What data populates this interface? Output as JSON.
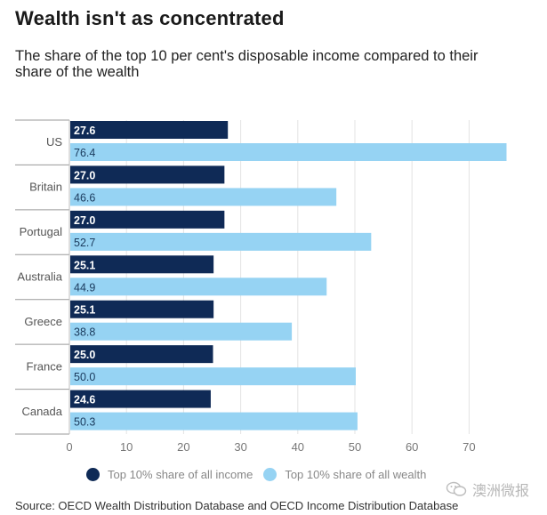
{
  "header": {
    "title": "Wealth isn't as concentrated",
    "subtitle": "The share of the top 10 per cent's disposable income compared to their share of the wealth"
  },
  "chart_data": {
    "type": "bar",
    "orientation": "horizontal",
    "categories": [
      "US",
      "Britain",
      "Portugal",
      "Australia",
      "Greece",
      "France",
      "Canada"
    ],
    "series": [
      {
        "name": "Top 10% share of all income",
        "color": "#0f2a56",
        "label_color": "#ffffff",
        "values": [
          27.6,
          27.0,
          27.0,
          25.1,
          25.1,
          25.0,
          24.6
        ],
        "labels": [
          "27.6",
          "27.0",
          "27.0",
          "25.1",
          "25.1",
          "25.0",
          "24.6"
        ]
      },
      {
        "name": "Top 10% share of all wealth",
        "color": "#96d3f3",
        "label_color": "#1a3a5c",
        "values": [
          76.4,
          46.6,
          52.7,
          44.9,
          38.8,
          50.0,
          50.3
        ],
        "labels": [
          "76.4",
          "46.6",
          "52.7",
          "44.9",
          "38.8",
          "50.0",
          "50.3"
        ]
      }
    ],
    "xlim": [
      0,
      78
    ],
    "xticks": [
      0,
      10,
      20,
      30,
      40,
      50,
      60,
      70
    ],
    "grid": true,
    "legend_position": "bottom"
  },
  "legend": {
    "income_label": "Top 10% share of all income",
    "wealth_label": "Top 10% share of all wealth",
    "income_color": "#0f2a56",
    "wealth_color": "#96d3f3"
  },
  "watermark": {
    "text": "澳洲微报",
    "icon": "wechat-icon"
  },
  "source": "Source: OECD Wealth Distribution Database and OECD Income Distribution Database"
}
